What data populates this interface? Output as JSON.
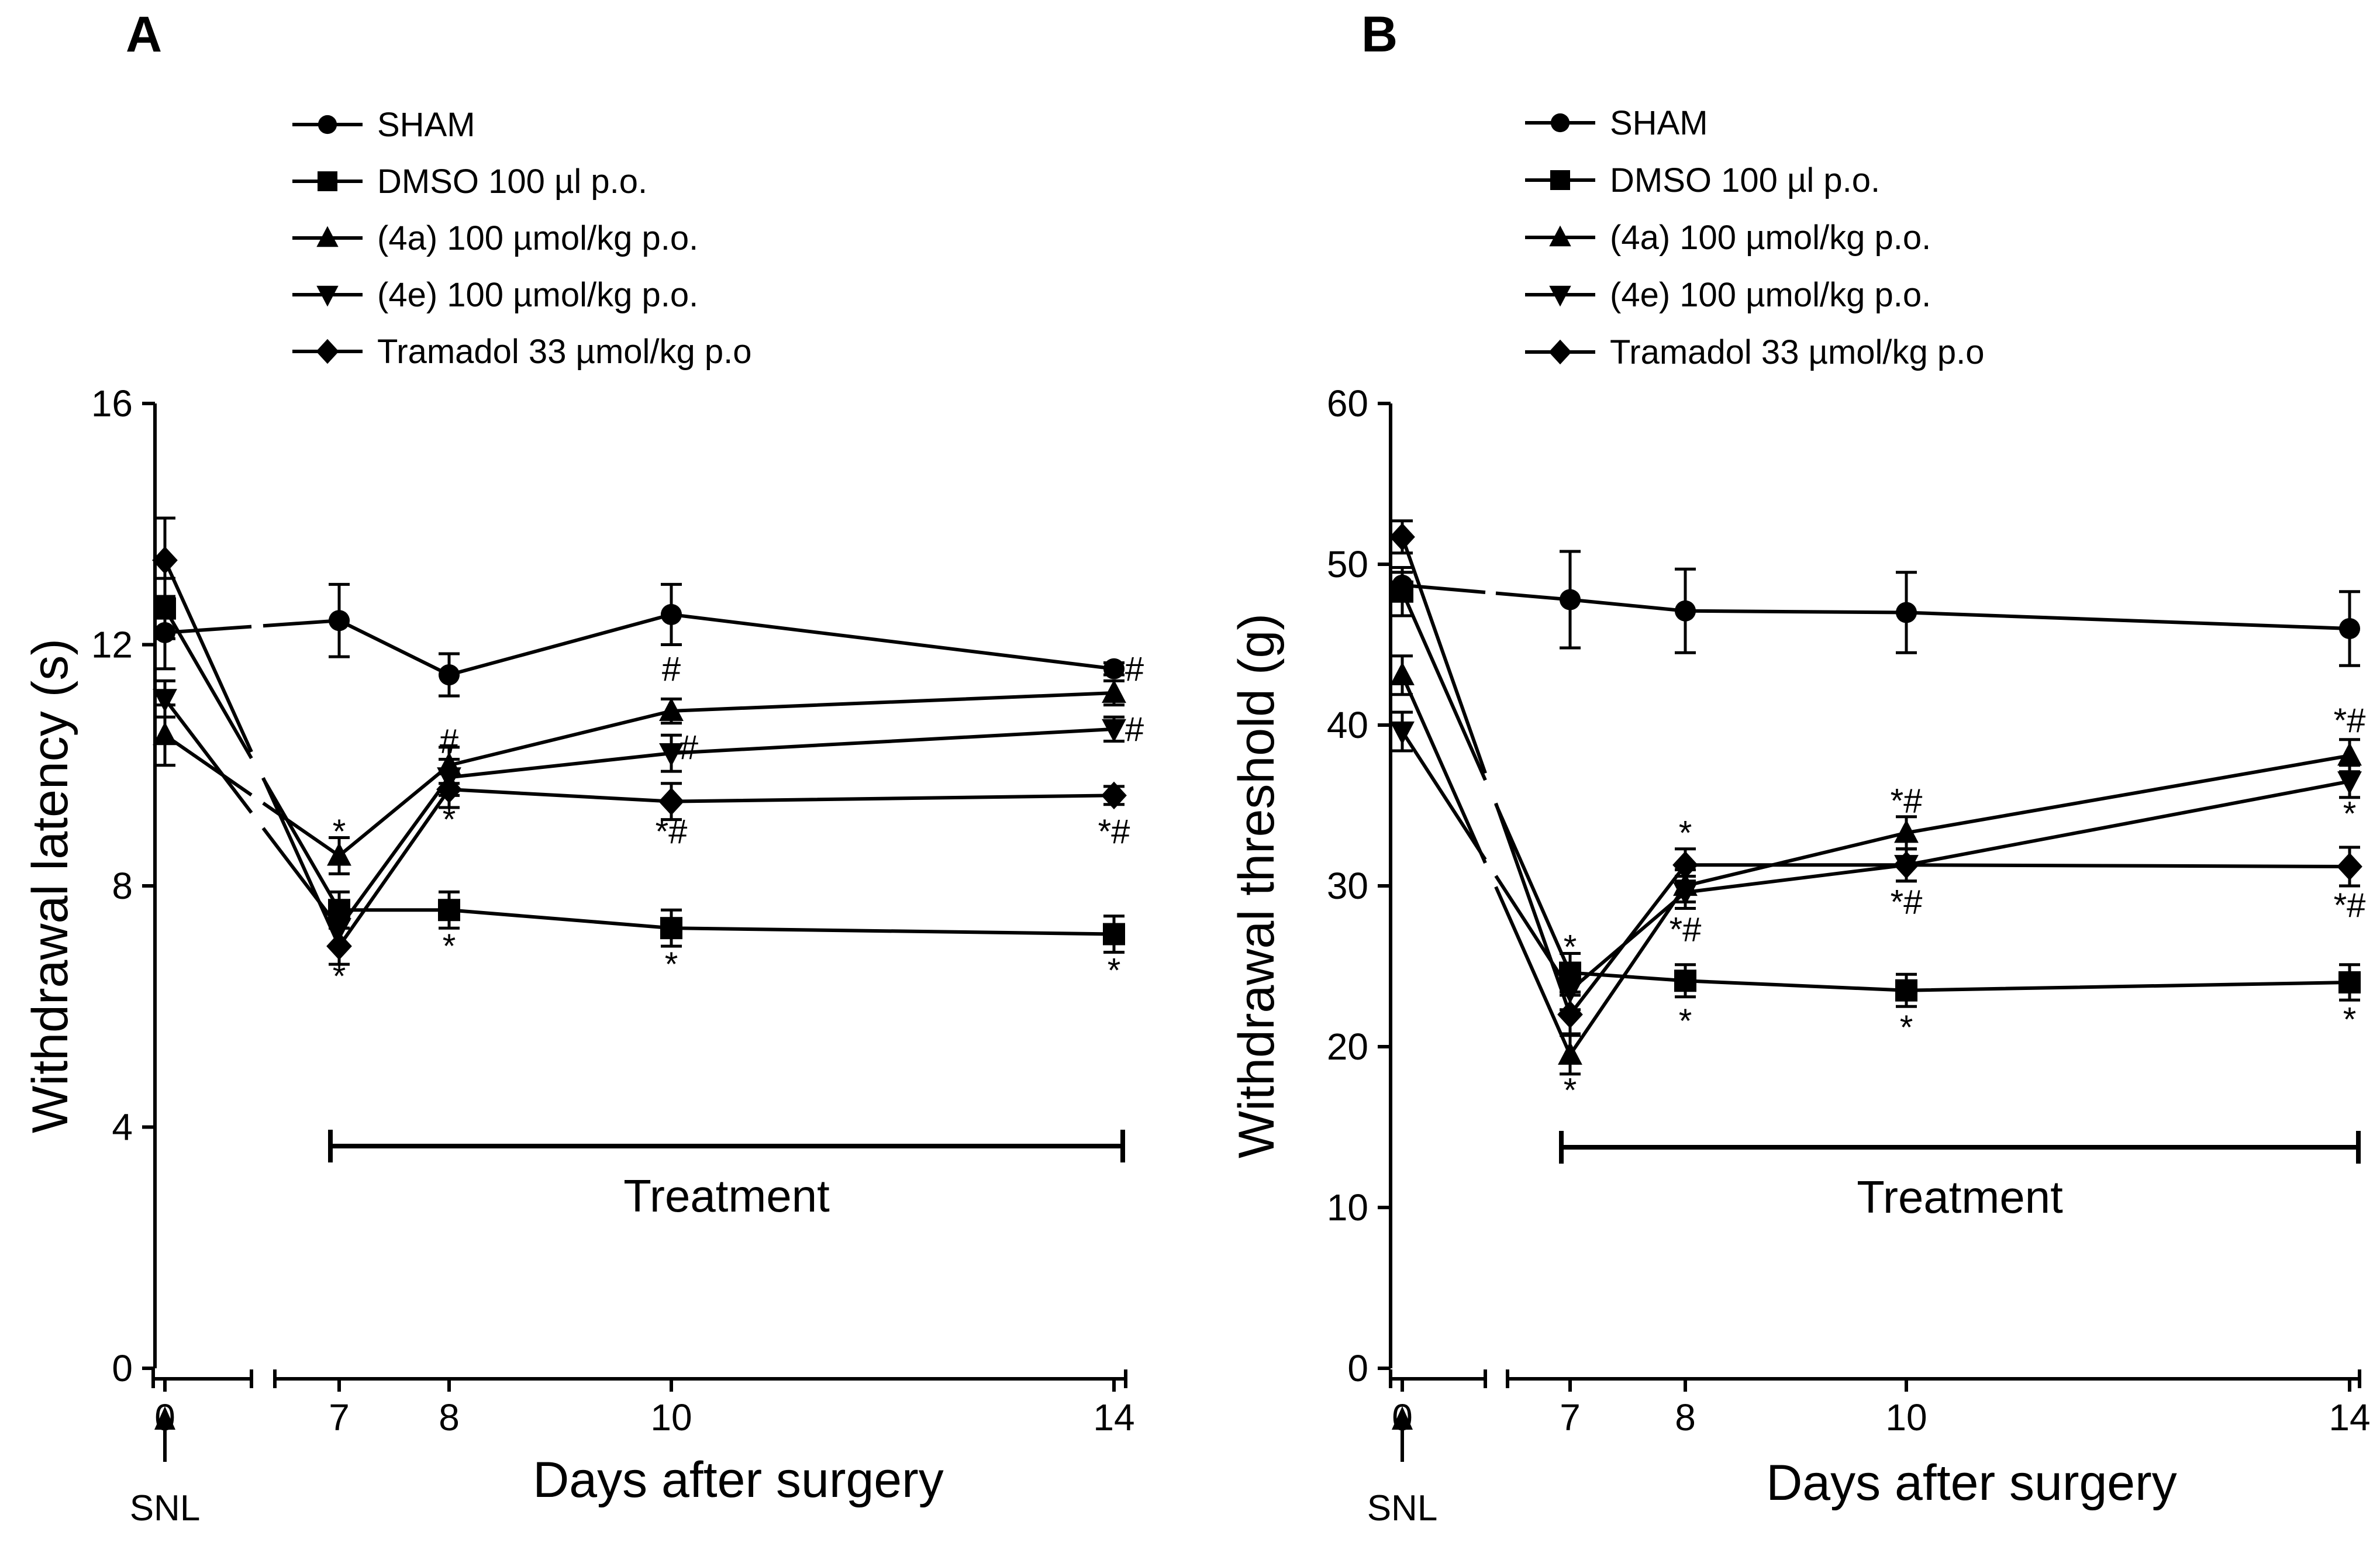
{
  "chart_data": [
    {
      "type": "line",
      "panel_label": "A",
      "xlabel": "Days after surgery",
      "ylabel": "Withdrawal latency (s)",
      "ylim": [
        0,
        16
      ],
      "yticks": [
        0,
        4,
        8,
        12,
        16
      ],
      "x": [
        0,
        7,
        8,
        10,
        14
      ],
      "x_tick_labels": [
        "0",
        "7",
        "8",
        "10",
        "14"
      ],
      "snl_label": "SNL",
      "treatment_label": "Treatment",
      "treatment_range": [
        7,
        14
      ],
      "series": [
        {
          "name": "SHAM",
          "marker": "circle",
          "values": [
            12.2,
            12.4,
            11.5,
            12.5,
            11.6
          ],
          "errors": [
            0.6,
            0.6,
            0.35,
            0.5,
            0.1
          ]
        },
        {
          "name": "DMSO 100 µl p.o.",
          "marker": "square",
          "values": [
            12.6,
            7.6,
            7.6,
            7.3,
            7.2
          ],
          "errors": [
            0.5,
            0.3,
            0.3,
            0.3,
            0.3
          ]
        },
        {
          "name": "(4a) 100 µmol/kg p.o.",
          "marker": "triangle",
          "values": [
            10.5,
            8.5,
            10.0,
            10.9,
            11.2
          ],
          "errors": [
            0.5,
            0.3,
            0.3,
            0.2,
            0.2
          ]
        },
        {
          "name": "(4e) 100 µmol/kg p.o.",
          "marker": "triangle-down",
          "values": [
            11.1,
            7.3,
            9.8,
            10.2,
            10.6
          ],
          "errors": [
            0.3,
            0.3,
            0.3,
            0.3,
            0.2
          ]
        },
        {
          "name": "Tramadol 33 µmol/kg p.o",
          "marker": "diamond",
          "values": [
            13.4,
            7.0,
            9.6,
            9.4,
            9.5
          ],
          "errors": [
            0.7,
            0.3,
            0.3,
            0.3,
            0.15
          ]
        }
      ],
      "annotations": [
        {
          "x": 7,
          "y": 8.9,
          "text": "*"
        },
        {
          "x": 7,
          "y": 6.5,
          "text": "*"
        },
        {
          "x": 8,
          "y": 10.4,
          "text": "#"
        },
        {
          "x": 8,
          "y": 9.1,
          "text": "*"
        },
        {
          "x": 8,
          "y": 7.0,
          "text": "*"
        },
        {
          "x": 10,
          "y": 11.6,
          "text": "#"
        },
        {
          "x": 10.3,
          "y": 10.3,
          "text": "#"
        },
        {
          "x": 10,
          "y": 8.9,
          "text": "*#"
        },
        {
          "x": 10,
          "y": 6.7,
          "text": "*"
        },
        {
          "x": 14.35,
          "y": 11.6,
          "text": "#"
        },
        {
          "x": 14.35,
          "y": 10.6,
          "text": "#"
        },
        {
          "x": 14,
          "y": 8.9,
          "text": "*#"
        },
        {
          "x": 14,
          "y": 6.6,
          "text": "*"
        }
      ]
    },
    {
      "type": "line",
      "panel_label": "B",
      "xlabel": "Days after surgery",
      "ylabel": "Withdrawal threshold (g)",
      "ylim": [
        0,
        60
      ],
      "yticks": [
        0,
        10,
        20,
        30,
        40,
        50,
        60
      ],
      "x": [
        0,
        7,
        8,
        10,
        14
      ],
      "x_tick_labels": [
        "0",
        "7",
        "8",
        "10",
        "14"
      ],
      "snl_label": "SNL",
      "treatment_label": "Treatment",
      "treatment_range": [
        7,
        14
      ],
      "series": [
        {
          "name": "SHAM",
          "marker": "circle",
          "values": [
            48.7,
            47.8,
            47.1,
            47.0,
            46.0
          ],
          "errors": [
            0.8,
            3.0,
            2.6,
            2.5,
            2.3
          ]
        },
        {
          "name": "DMSO 100 µl p.o.",
          "marker": "square",
          "values": [
            48.3,
            24.6,
            24.1,
            23.5,
            24.0
          ],
          "errors": [
            1.5,
            1.2,
            1.0,
            1.0,
            1.1
          ]
        },
        {
          "name": "(4a) 100 µmol/kg p.o.",
          "marker": "triangle",
          "values": [
            43.1,
            19.5,
            30.0,
            33.3,
            38.1
          ],
          "errors": [
            1.2,
            1.2,
            1.0,
            1.0,
            1.0
          ]
        },
        {
          "name": "(4e) 100 µmol/kg p.o.",
          "marker": "triangle-down",
          "values": [
            39.6,
            23.5,
            29.6,
            31.3,
            36.5
          ],
          "errors": [
            1.2,
            1.2,
            1.0,
            1.0,
            1.0
          ]
        },
        {
          "name": "Tramadol 33 µmol/kg p.o",
          "marker": "diamond",
          "values": [
            51.7,
            22.0,
            31.3,
            31.3,
            31.2
          ],
          "errors": [
            1.0,
            1.2,
            1.0,
            1.0,
            1.2
          ]
        }
      ],
      "annotations": [
        {
          "x": 7,
          "y": 26.2,
          "text": "*"
        },
        {
          "x": 7,
          "y": 17.3,
          "text": "*"
        },
        {
          "x": 8,
          "y": 33.3,
          "text": "*"
        },
        {
          "x": 8,
          "y": 27.3,
          "text": "*#"
        },
        {
          "x": 8,
          "y": 21.6,
          "text": "*"
        },
        {
          "x": 10,
          "y": 35.3,
          "text": "*#"
        },
        {
          "x": 10,
          "y": 29.0,
          "text": "*#"
        },
        {
          "x": 10,
          "y": 21.2,
          "text": "*"
        },
        {
          "x": 14,
          "y": 40.3,
          "text": "*#"
        },
        {
          "x": 14,
          "y": 34.5,
          "text": "*"
        },
        {
          "x": 14,
          "y": 28.8,
          "text": "*#"
        },
        {
          "x": 14,
          "y": 21.7,
          "text": "*"
        }
      ]
    }
  ]
}
